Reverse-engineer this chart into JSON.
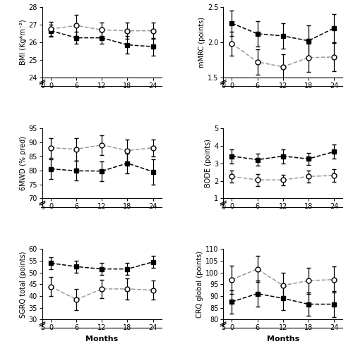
{
  "months": [
    0,
    6,
    12,
    18,
    24
  ],
  "BMI": {
    "filled": {
      "y": [
        26.65,
        26.25,
        26.25,
        25.85,
        25.75
      ],
      "yerr": [
        0.35,
        0.35,
        0.35,
        0.5,
        0.5
      ]
    },
    "open": {
      "y": [
        26.75,
        26.95,
        26.7,
        26.65,
        26.65
      ],
      "yerr": [
        0.4,
        0.6,
        0.4,
        0.45,
        0.45
      ]
    },
    "ylabel": "BMI (Kg*m⁻²)",
    "ylim": [
      24,
      28
    ],
    "yticks": [
      24,
      25,
      26,
      27,
      28
    ],
    "y0label": "0"
  },
  "mMRC": {
    "filled": {
      "y": [
        2.27,
        2.12,
        2.09,
        2.02,
        2.2
      ],
      "yerr": [
        0.18,
        0.18,
        0.18,
        0.22,
        0.2
      ]
    },
    "open": {
      "y": [
        1.98,
        1.72,
        1.65,
        1.78,
        1.79
      ],
      "yerr": [
        0.17,
        0.18,
        0.18,
        0.2,
        0.2
      ]
    },
    "ylabel": "mMRC (points)",
    "ylim": [
      1.5,
      2.5
    ],
    "yticks": [
      1.5,
      2.0,
      2.5
    ],
    "y0label": "0"
  },
  "6MWD": {
    "filled": {
      "y": [
        80.5,
        79.8,
        79.7,
        82.5,
        79.5
      ],
      "yerr": [
        3.5,
        3.5,
        3.5,
        3.5,
        4.5
      ]
    },
    "open": {
      "y": [
        88.0,
        87.5,
        89.0,
        87.0,
        88.0
      ],
      "yerr": [
        3.5,
        4.0,
        3.5,
        4.0,
        3.0
      ]
    },
    "ylabel": "6MWD (% pred)",
    "ylim": [
      70,
      95
    ],
    "yticks": [
      70,
      75,
      80,
      85,
      90,
      95
    ],
    "y0label": "5"
  },
  "BODE": {
    "filled": {
      "y": [
        3.4,
        3.2,
        3.4,
        3.25,
        3.65
      ],
      "yerr": [
        0.4,
        0.35,
        0.4,
        0.35,
        0.4
      ]
    },
    "open": {
      "y": [
        2.25,
        2.05,
        2.05,
        2.25,
        2.3
      ],
      "yerr": [
        0.35,
        0.35,
        0.3,
        0.35,
        0.35
      ]
    },
    "ylabel": "BODE (points)",
    "ylim": [
      1,
      5
    ],
    "yticks": [
      1,
      2,
      3,
      4,
      5
    ],
    "y0label": "0"
  },
  "SGRQ": {
    "filled": {
      "y": [
        54.0,
        52.5,
        51.5,
        51.5,
        54.5
      ],
      "yerr": [
        2.5,
        2.5,
        2.5,
        2.5,
        2.5
      ]
    },
    "open": {
      "y": [
        44.0,
        38.5,
        43.0,
        43.0,
        42.5
      ],
      "yerr": [
        4.0,
        4.5,
        4.0,
        4.5,
        4.0
      ]
    },
    "ylabel": "SGRQ total (points)",
    "ylim": [
      30,
      60
    ],
    "yticks": [
      30,
      35,
      40,
      45,
      50,
      55,
      60
    ],
    "y0label": "5"
  },
  "CRQ": {
    "filled": {
      "y": [
        87.5,
        91.0,
        89.0,
        86.5,
        86.5
      ],
      "yerr": [
        5.0,
        5.5,
        5.0,
        5.0,
        5.5
      ]
    },
    "open": {
      "y": [
        97.0,
        101.5,
        94.5,
        96.5,
        97.0
      ],
      "yerr": [
        6.0,
        5.5,
        5.5,
        5.5,
        5.5
      ]
    },
    "ylabel": "CRQ global (points)",
    "ylim": [
      80,
      110
    ],
    "yticks": [
      80,
      85,
      90,
      95,
      100,
      105,
      110
    ],
    "y0label": "5"
  },
  "xlabel": "Months",
  "xticks": [
    0,
    6,
    12,
    18,
    24
  ],
  "filled_marker": "s",
  "open_marker": "o",
  "marker_size": 5,
  "capsize": 2.5,
  "linewidth": 1.1,
  "elinewidth": 0.9,
  "filled_color": "black",
  "open_line_color": "#999999",
  "open_face_color": "white",
  "open_edge_color": "black"
}
